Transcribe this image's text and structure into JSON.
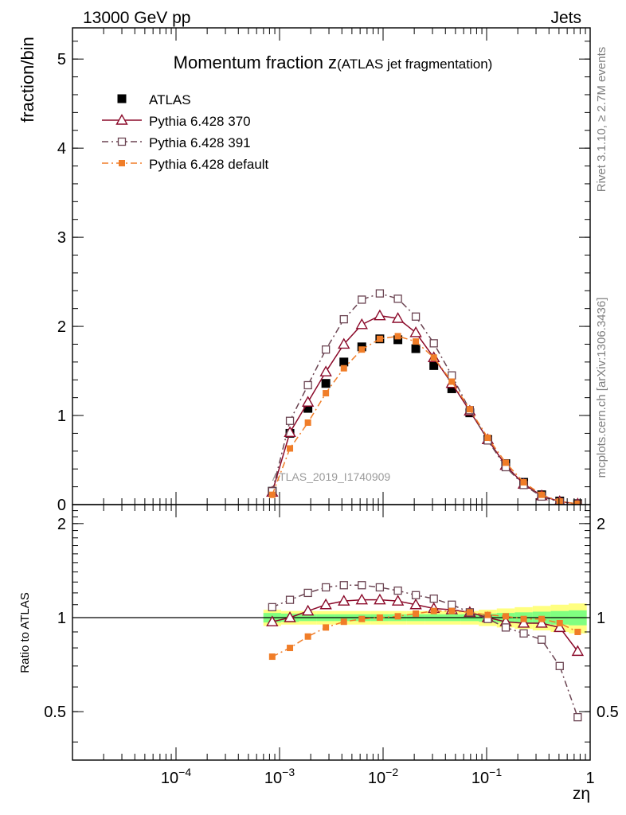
{
  "header": {
    "left": "13000 GeV pp",
    "right": "Jets"
  },
  "side_labels": {
    "rivet": "Rivet 3.1.10, ≥ 2.7M events",
    "mcplots": "mcplots.cern.ch [arXiv:1306.3436]"
  },
  "watermark": "ATLAS_2019_I1740909",
  "chart_data": [
    {
      "type": "scatter",
      "panel": "main",
      "title_main": "Momentum fraction z",
      "title_sub": "(ATLAS jet fragmentation)",
      "ylabel": "fraction/bin",
      "xscale": "log",
      "xlim": [
        1e-05,
        1
      ],
      "ylim": [
        0,
        5.35
      ],
      "yticks": [
        0,
        1,
        2,
        3,
        4,
        5
      ],
      "ytick_labels": [
        "0",
        "1",
        "2",
        "3",
        "4",
        "5"
      ],
      "legend": "top-left",
      "x": [
        0.00085,
        0.00126,
        0.00188,
        0.0028,
        0.00418,
        0.00623,
        0.0093,
        0.0139,
        0.0207,
        0.0309,
        0.0461,
        0.0688,
        0.1026,
        0.153,
        0.228,
        0.34,
        0.508,
        0.758
      ],
      "series": [
        {
          "name": "ATLAS",
          "color": "#000000",
          "marker": "filled-square",
          "line": "none",
          "values": [
            0.15,
            0.8,
            1.08,
            1.36,
            1.6,
            1.77,
            1.86,
            1.85,
            1.75,
            1.56,
            1.3,
            1.03,
            0.73,
            0.46,
            0.25,
            0.11,
            0.04,
            0.01
          ]
        },
        {
          "name": "Pythia 6.428 370",
          "color": "#8b0a2a",
          "marker": "open-triangle",
          "line": "solid",
          "values": [
            0.14,
            0.81,
            1.15,
            1.49,
            1.8,
            2.02,
            2.12,
            2.09,
            1.93,
            1.65,
            1.36,
            1.05,
            0.73,
            0.44,
            0.23,
            0.1,
            0.035,
            0.008
          ]
        },
        {
          "name": "Pythia 6.428 391",
          "color": "#6b4452",
          "marker": "open-square",
          "line": "dashdot",
          "values": [
            0.15,
            0.94,
            1.34,
            1.74,
            2.08,
            2.3,
            2.37,
            2.31,
            2.11,
            1.81,
            1.45,
            1.06,
            0.72,
            0.42,
            0.22,
            0.09,
            0.028,
            0.005
          ]
        },
        {
          "name": "Pythia 6.428 default",
          "color": "#f07d28",
          "marker": "filled-square-small",
          "line": "dashdot",
          "values": [
            0.11,
            0.63,
            0.92,
            1.25,
            1.53,
            1.74,
            1.86,
            1.89,
            1.83,
            1.65,
            1.38,
            1.07,
            0.75,
            0.47,
            0.25,
            0.11,
            0.036,
            0.009
          ]
        }
      ]
    },
    {
      "type": "line",
      "panel": "ratio",
      "ylabel": "Ratio to ATLAS",
      "xlabel": "zη",
      "xscale": "log",
      "xlim": [
        1e-05,
        1
      ],
      "ylim": [
        0.35,
        2.3
      ],
      "yscale": "log",
      "yticks": [
        0.5,
        1,
        2
      ],
      "ytick_labels": [
        "0.5",
        "1",
        "2"
      ],
      "xticks": [
        0.0001,
        0.001,
        0.01,
        0.1,
        1
      ],
      "xtick_base": [
        "10",
        "10",
        "10",
        "10",
        "1"
      ],
      "xtick_exp": [
        "−4",
        "−3",
        "−2",
        "−1",
        ""
      ],
      "reference_line": 1,
      "band_color_outer": "#ffff80",
      "band_color_inner": "#80ff80",
      "band_outer": [
        0.06,
        0.05,
        0.05,
        0.05,
        0.05,
        0.05,
        0.05,
        0.05,
        0.05,
        0.05,
        0.05,
        0.05,
        0.06,
        0.07,
        0.08,
        0.09,
        0.1,
        0.11
      ],
      "band_inner": [
        0.035,
        0.03,
        0.025,
        0.025,
        0.025,
        0.025,
        0.025,
        0.025,
        0.025,
        0.025,
        0.025,
        0.025,
        0.03,
        0.035,
        0.04,
        0.045,
        0.05,
        0.055
      ],
      "series": [
        {
          "name": "Pythia 6.428 370",
          "color": "#8b0a2a",
          "marker": "open-triangle",
          "line": "solid",
          "values": [
            0.97,
            1.0,
            1.05,
            1.1,
            1.13,
            1.14,
            1.14,
            1.13,
            1.1,
            1.07,
            1.06,
            1.04,
            1.0,
            0.97,
            0.96,
            0.96,
            0.93,
            0.78
          ]
        },
        {
          "name": "Pythia 6.428 391",
          "color": "#6b4452",
          "marker": "open-square",
          "line": "dashdot",
          "values": [
            1.08,
            1.14,
            1.2,
            1.25,
            1.27,
            1.27,
            1.25,
            1.22,
            1.18,
            1.15,
            1.1,
            1.04,
            0.99,
            0.93,
            0.89,
            0.85,
            0.7,
            0.48
          ]
        },
        {
          "name": "Pythia 6.428 default",
          "color": "#f07d28",
          "marker": "filled-square-small",
          "line": "dashdot",
          "values": [
            0.75,
            0.8,
            0.87,
            0.93,
            0.97,
            0.99,
            1.0,
            1.01,
            1.03,
            1.05,
            1.05,
            1.04,
            1.02,
            1.01,
            0.99,
            0.99,
            0.96,
            0.9
          ]
        }
      ]
    }
  ]
}
